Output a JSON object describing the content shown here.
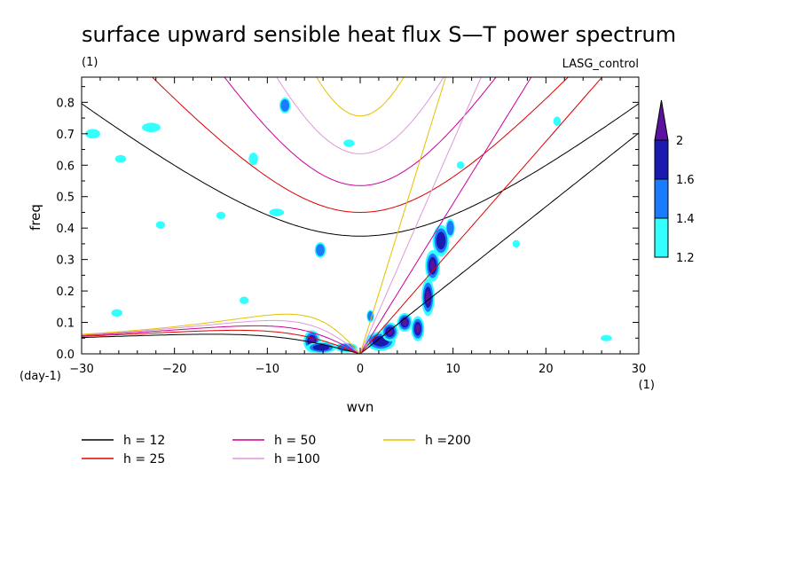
{
  "chart_data": {
    "type": "heatmap",
    "title": "surface upward sensible heat flux S—T power spectrum",
    "units_label": "(1)",
    "run_label": "LASG_control",
    "xlabel": "wvn",
    "ylabel": "freq",
    "x_unit_label": "(1)",
    "y_unit_label": "(day-1)",
    "xlim": [
      -30,
      30
    ],
    "ylim": [
      0,
      0.88
    ],
    "x_ticks": [
      "−30",
      "−20",
      "−10",
      "0",
      "10",
      "20",
      "30"
    ],
    "x_tick_values": [
      -30,
      -20,
      -10,
      0,
      10,
      20,
      30
    ],
    "y_ticks": [
      "0.0",
      "0.1",
      "0.2",
      "0.3",
      "0.4",
      "0.5",
      "0.6",
      "0.7",
      "0.8"
    ],
    "y_tick_values": [
      0,
      0.1,
      0.2,
      0.3,
      0.4,
      0.5,
      0.6,
      0.7,
      0.8
    ],
    "colorbar": {
      "levels": [
        1.2,
        1.4,
        1.6,
        2
      ],
      "labels": [
        "1.2",
        "1.4",
        "1.6",
        "2"
      ],
      "colors": [
        "#33ffff",
        "#1a7bff",
        "#1a1ab0",
        "#5b12a0"
      ]
    },
    "dispersion_curves": [
      {
        "label": "h = 12",
        "h": 12,
        "color": "#000000"
      },
      {
        "label": "h = 25",
        "h": 25,
        "color": "#dd0000"
      },
      {
        "label": "h = 50",
        "h": 50,
        "color": "#cc0099"
      },
      {
        "label": "h =100",
        "h": 100,
        "color": "#dd99dd"
      },
      {
        "label": "h =200",
        "h": 200,
        "color": "#e6c000"
      }
    ],
    "spectral_blobs": [
      {
        "x": -5.2,
        "y": 0.04,
        "rx": 0.9,
        "ry": 0.035,
        "level": 4
      },
      {
        "x": -4.2,
        "y": 0.02,
        "rx": 1.6,
        "ry": 0.018,
        "level": 3
      },
      {
        "x": -1.5,
        "y": 0.02,
        "rx": 1.2,
        "ry": 0.015,
        "level": 2
      },
      {
        "x": 2.2,
        "y": 0.04,
        "rx": 1.6,
        "ry": 0.03,
        "level": 3
      },
      {
        "x": 3.2,
        "y": 0.07,
        "rx": 0.9,
        "ry": 0.03,
        "level": 4
      },
      {
        "x": 4.8,
        "y": 0.1,
        "rx": 0.8,
        "ry": 0.03,
        "level": 4
      },
      {
        "x": 6.2,
        "y": 0.08,
        "rx": 0.7,
        "ry": 0.04,
        "level": 4
      },
      {
        "x": 7.3,
        "y": 0.18,
        "rx": 0.7,
        "ry": 0.06,
        "level": 4
      },
      {
        "x": 7.8,
        "y": 0.28,
        "rx": 0.8,
        "ry": 0.05,
        "level": 4
      },
      {
        "x": 8.7,
        "y": 0.36,
        "rx": 0.9,
        "ry": 0.05,
        "level": 3
      },
      {
        "x": 9.7,
        "y": 0.4,
        "rx": 0.5,
        "ry": 0.03,
        "level": 2
      },
      {
        "x": 1.1,
        "y": 0.12,
        "rx": 0.4,
        "ry": 0.02,
        "level": 2
      },
      {
        "x": -4.3,
        "y": 0.33,
        "rx": 0.6,
        "ry": 0.025,
        "level": 2
      },
      {
        "x": -11.5,
        "y": 0.62,
        "rx": 0.5,
        "ry": 0.02,
        "level": 1
      },
      {
        "x": -8.1,
        "y": 0.79,
        "rx": 0.6,
        "ry": 0.025,
        "level": 2
      },
      {
        "x": -1.2,
        "y": 0.67,
        "rx": 0.6,
        "ry": 0.012,
        "level": 1
      },
      {
        "x": -22.5,
        "y": 0.72,
        "rx": 1.0,
        "ry": 0.015,
        "level": 1
      },
      {
        "x": -28.8,
        "y": 0.7,
        "rx": 0.8,
        "ry": 0.015,
        "level": 1
      },
      {
        "x": -25.8,
        "y": 0.62,
        "rx": 0.6,
        "ry": 0.012,
        "level": 1
      },
      {
        "x": -26.2,
        "y": 0.13,
        "rx": 0.6,
        "ry": 0.012,
        "level": 1
      },
      {
        "x": -12.5,
        "y": 0.17,
        "rx": 0.5,
        "ry": 0.012,
        "level": 1
      },
      {
        "x": -15.0,
        "y": 0.44,
        "rx": 0.5,
        "ry": 0.012,
        "level": 1
      },
      {
        "x": -21.5,
        "y": 0.41,
        "rx": 0.5,
        "ry": 0.012,
        "level": 1
      },
      {
        "x": -9.0,
        "y": 0.45,
        "rx": 0.8,
        "ry": 0.012,
        "level": 1
      },
      {
        "x": 10.8,
        "y": 0.6,
        "rx": 0.4,
        "ry": 0.012,
        "level": 1
      },
      {
        "x": 21.2,
        "y": 0.74,
        "rx": 0.4,
        "ry": 0.015,
        "level": 1
      },
      {
        "x": 26.5,
        "y": 0.05,
        "rx": 0.6,
        "ry": 0.01,
        "level": 1
      },
      {
        "x": 16.8,
        "y": 0.35,
        "rx": 0.4,
        "ry": 0.012,
        "level": 1
      }
    ]
  },
  "legend": {
    "items": [
      "h = 12",
      "h = 25",
      "h = 50",
      "h =100",
      "h =200"
    ]
  }
}
